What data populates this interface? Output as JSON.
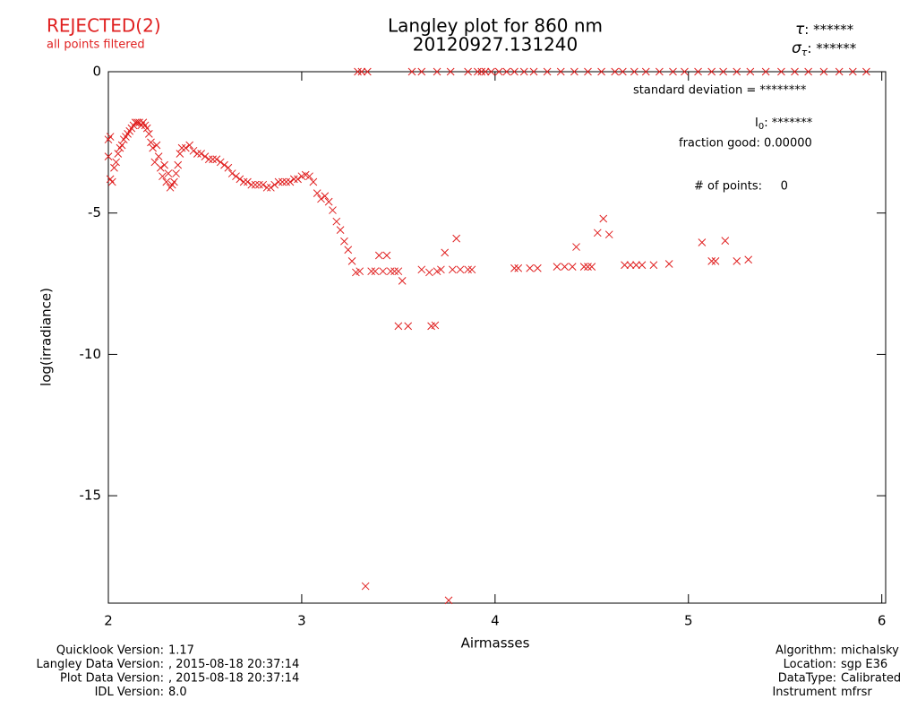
{
  "chart_data": {
    "type": "scatter",
    "title": "Langley plot for 860 nm",
    "subtitle": "20120927.131240",
    "status": "REJECTED(2)",
    "status_note": "all points filtered",
    "tau": {
      "symbol": "τ",
      "text": ": ******"
    },
    "sigma_tau": {
      "symbol": "σ",
      "subscript": "τ",
      "text": ": ******"
    },
    "std_dev": "standard deviation  = ********",
    "i0": {
      "symbol": "I",
      "subscript": "0",
      "text": ": *******"
    },
    "fraction_good": "fraction good: 0.00000",
    "num_points": "# of points:     0",
    "x_label": "Airmasses",
    "y_label": "log(irradiance)",
    "color": "#e02020",
    "xlim": [
      2,
      6.02
    ],
    "ylim": [
      -18.8,
      0
    ],
    "xticks": [
      2,
      3,
      4,
      5,
      6
    ],
    "yticks": [
      0,
      -5,
      -10,
      -15
    ],
    "x": [
      2.0,
      2.0,
      2.01,
      2.01,
      2.02,
      2.03,
      2.04,
      2.05,
      2.06,
      2.07,
      2.08,
      2.09,
      2.1,
      2.11,
      2.12,
      2.13,
      2.14,
      2.15,
      2.16,
      2.17,
      2.18,
      2.19,
      2.2,
      2.21,
      2.22,
      2.23,
      2.24,
      2.25,
      2.26,
      2.27,
      2.28,
      2.29,
      2.3,
      2.31,
      2.32,
      2.33,
      2.34,
      2.35,
      2.36,
      2.37,
      2.38,
      2.4,
      2.42,
      2.44,
      2.46,
      2.48,
      2.5,
      2.52,
      2.54,
      2.56,
      2.58,
      2.6,
      2.62,
      2.64,
      2.66,
      2.68,
      2.7,
      2.72,
      2.74,
      2.76,
      2.78,
      2.8,
      2.82,
      2.84,
      2.86,
      2.88,
      2.9,
      2.92,
      2.94,
      2.96,
      2.98,
      3.0,
      3.02,
      3.04,
      3.06,
      3.08,
      3.1,
      3.12,
      3.14,
      3.16,
      3.18,
      3.2,
      3.22,
      3.24,
      3.26,
      3.28,
      3.3,
      3.36,
      3.38,
      3.4,
      3.42,
      3.44,
      3.46,
      3.48,
      3.5,
      3.5,
      3.52,
      3.55,
      3.62,
      3.66,
      3.67,
      3.69,
      3.7,
      3.72,
      3.74,
      3.78,
      3.8,
      3.82,
      3.86,
      3.88,
      4.1,
      4.12,
      4.18,
      4.22,
      4.32,
      4.36,
      4.4,
      4.42,
      4.46,
      4.48,
      4.5,
      4.53,
      4.56,
      4.59,
      4.67,
      4.7,
      4.73,
      4.76,
      4.82,
      4.9,
      5.07,
      5.12,
      5.14,
      5.19,
      5.25,
      5.31,
      3.33,
      3.76,
      3.29,
      3.31,
      3.34,
      3.57,
      3.62,
      3.7,
      3.77,
      3.86,
      3.91,
      3.93,
      3.95,
      3.98,
      4.02,
      4.06,
      4.1,
      4.15,
      4.2,
      4.27,
      4.34,
      4.41,
      4.48,
      4.55,
      4.62,
      4.66,
      4.72,
      4.78,
      4.85,
      4.92,
      4.98,
      5.05,
      5.12,
      5.18,
      5.25,
      5.32,
      5.4,
      5.48,
      5.55,
      5.62,
      5.7,
      5.78,
      5.85,
      5.92
    ],
    "values": [
      -2.4,
      -3.0,
      -2.3,
      -3.8,
      -3.9,
      -3.4,
      -3.2,
      -2.9,
      -2.7,
      -2.6,
      -2.4,
      -2.3,
      -2.2,
      -2.1,
      -2.0,
      -1.9,
      -1.8,
      -1.8,
      -1.8,
      -1.9,
      -1.8,
      -1.9,
      -2.0,
      -2.2,
      -2.5,
      -2.7,
      -3.2,
      -2.6,
      -3.0,
      -3.4,
      -3.7,
      -3.3,
      -3.9,
      -3.6,
      -4.1,
      -4.0,
      -3.9,
      -3.6,
      -3.3,
      -2.9,
      -2.7,
      -2.7,
      -2.6,
      -2.8,
      -2.9,
      -2.9,
      -3.0,
      -3.1,
      -3.1,
      -3.1,
      -3.2,
      -3.3,
      -3.4,
      -3.6,
      -3.7,
      -3.8,
      -3.9,
      -3.9,
      -4.0,
      -4.0,
      -4.0,
      -4.0,
      -4.1,
      -4.1,
      -4.0,
      -3.9,
      -3.9,
      -3.9,
      -3.9,
      -3.8,
      -3.8,
      -3.7,
      -3.65,
      -3.7,
      -3.9,
      -4.3,
      -4.5,
      -4.4,
      -4.6,
      -4.9,
      -5.3,
      -5.6,
      -6.0,
      -6.3,
      -6.7,
      -7.1,
      -7.06,
      -7.06,
      -7.06,
      -6.5,
      -7.06,
      -6.5,
      -7.06,
      -7.06,
      -7.06,
      -9.0,
      -7.4,
      -9.0,
      -7.0,
      -7.1,
      -9.0,
      -8.97,
      -7.06,
      -7.0,
      -6.4,
      -7.0,
      -5.9,
      -7.0,
      -7.0,
      -7.0,
      -6.95,
      -6.95,
      -6.95,
      -6.95,
      -6.9,
      -6.9,
      -6.9,
      -6.2,
      -6.9,
      -6.9,
      -6.9,
      -5.7,
      -5.2,
      -5.76,
      -6.84,
      -6.84,
      -6.84,
      -6.84,
      -6.84,
      -6.8,
      -6.04,
      -6.7,
      -6.7,
      -5.98,
      -6.7,
      -6.65,
      -18.2,
      -18.7,
      0,
      0,
      0,
      0,
      0,
      0,
      0,
      0,
      0,
      0,
      0,
      0,
      0,
      0,
      0,
      0,
      0,
      0,
      0,
      0,
      0,
      0,
      0,
      0,
      0,
      0,
      0,
      0,
      0,
      0,
      0,
      0,
      0,
      0,
      0,
      0,
      0,
      0,
      0,
      0,
      0,
      0
    ],
    "footer_left": [
      {
        "label": "Quicklook Version:",
        "value": "1.17"
      },
      {
        "label": "Langley Data Version:",
        "value": ", 2015-08-18 20:37:14"
      },
      {
        "label": "Plot Data Version:",
        "value": ", 2015-08-18 20:37:14"
      },
      {
        "label": "IDL Version:",
        "value": "8.0"
      }
    ],
    "footer_right": [
      {
        "label": "Algorithm:",
        "value": "michalsky"
      },
      {
        "label": "Location:",
        "value": "sgp E36"
      },
      {
        "label": "DataType:",
        "value": "Calibrated"
      },
      {
        "label": "Instrument",
        "value": "mfrsr"
      }
    ]
  }
}
